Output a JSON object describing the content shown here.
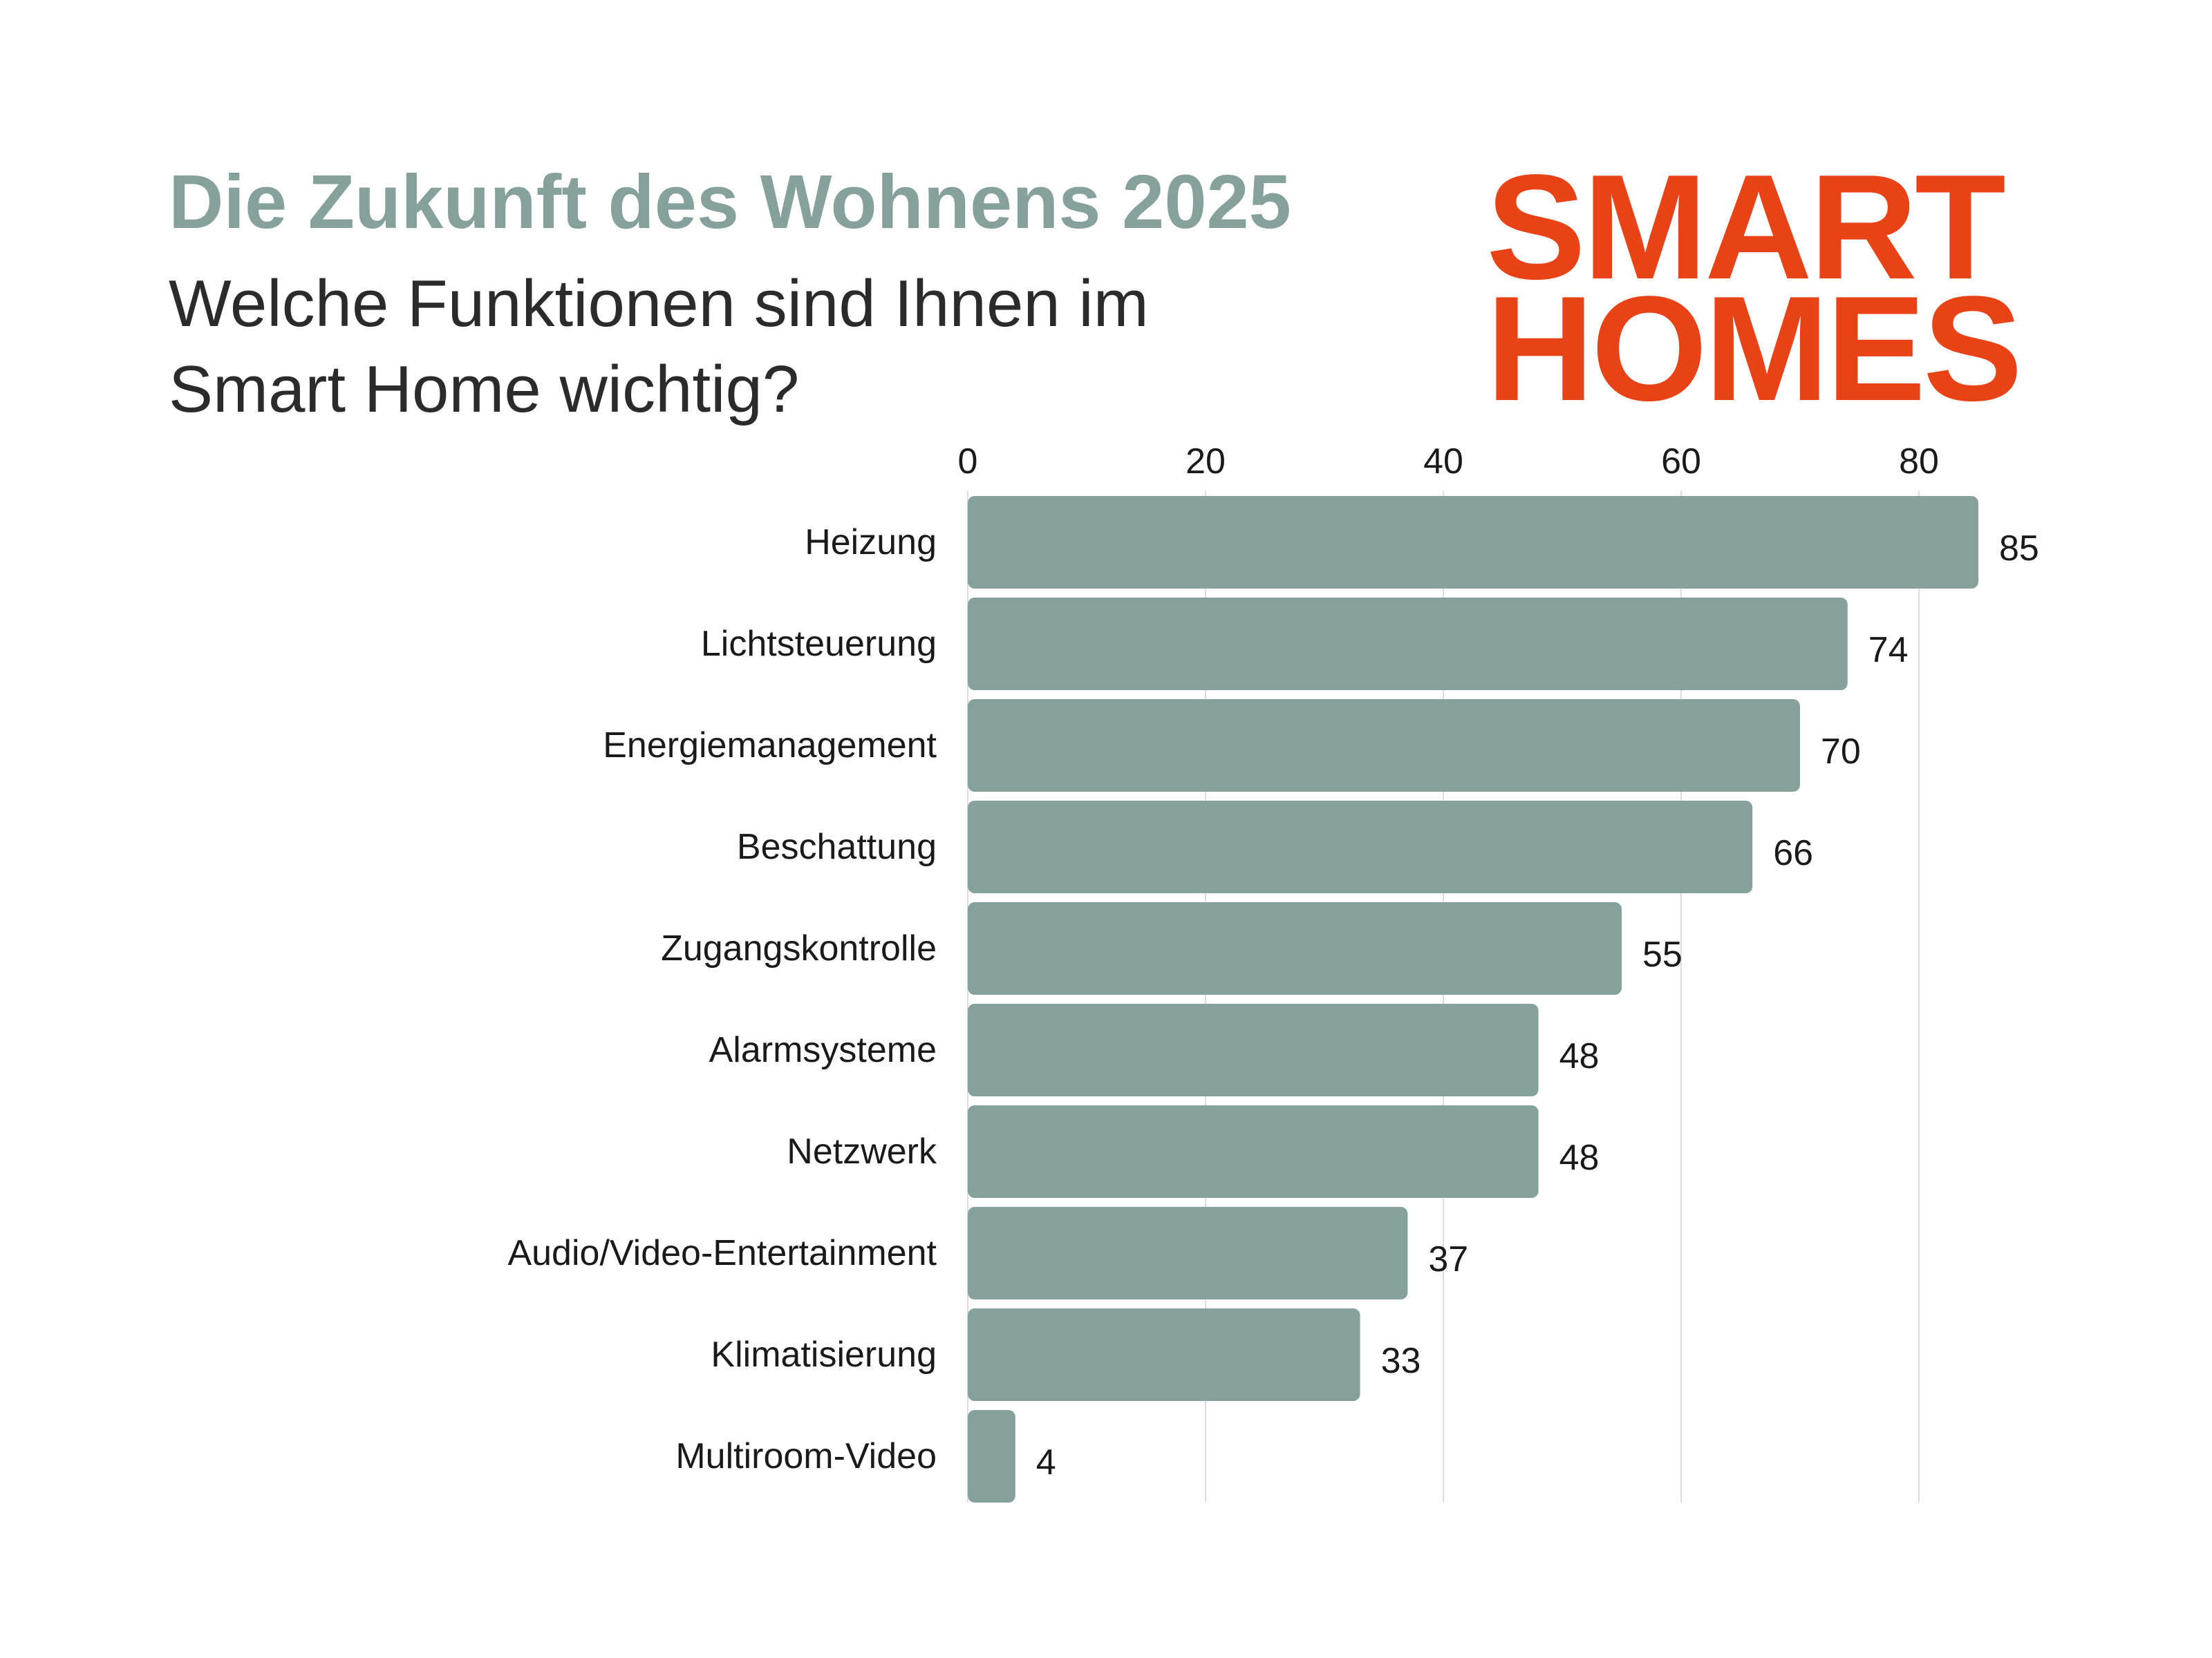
{
  "header": {
    "title": "Die Zukunft des Wohnens 2025",
    "subtitle": "Welche Funktionen sind Ihnen im Smart Home wichtig?"
  },
  "logo": {
    "line1": "SMART",
    "line2": "HOMES",
    "color": "#e84216"
  },
  "colors": {
    "bar": "#86a19b",
    "grid": "#dcdcdc",
    "text": "#1a1a1a",
    "title": "#86a19b"
  },
  "chart_data": {
    "type": "bar",
    "orientation": "horizontal",
    "categories": [
      "Heizung",
      "Lichtsteuerung",
      "Energiemanagement",
      "Beschattung",
      "Zugangskontrolle",
      "Alarmsysteme",
      "Netzwerk",
      "Audio/Video-Entertainment",
      "Klimatisierung",
      "Multiroom-Video"
    ],
    "values": [
      85,
      74,
      70,
      66,
      55,
      48,
      48,
      37,
      33,
      4
    ],
    "xlim": [
      0,
      90
    ],
    "xticks": [
      0,
      20,
      40,
      60,
      80
    ],
    "axis_position": "top",
    "grid": true,
    "data_labels": true
  }
}
